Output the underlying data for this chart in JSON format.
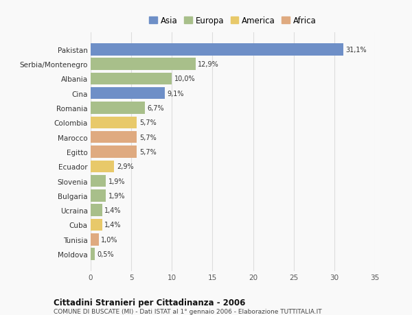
{
  "categories": [
    "Pakistan",
    "Serbia/Montenegro",
    "Albania",
    "Cina",
    "Romania",
    "Colombia",
    "Marocco",
    "Egitto",
    "Ecuador",
    "Slovenia",
    "Bulgaria",
    "Ucraina",
    "Cuba",
    "Tunisia",
    "Moldova"
  ],
  "values": [
    31.1,
    12.9,
    10.0,
    9.1,
    6.7,
    5.7,
    5.7,
    5.7,
    2.9,
    1.9,
    1.9,
    1.4,
    1.4,
    1.0,
    0.5
  ],
  "labels": [
    "31,1%",
    "12,9%",
    "10,0%",
    "9,1%",
    "6,7%",
    "5,7%",
    "5,7%",
    "5,7%",
    "2,9%",
    "1,9%",
    "1,9%",
    "1,4%",
    "1,4%",
    "1,0%",
    "0,5%"
  ],
  "continents": [
    "Asia",
    "Europa",
    "Europa",
    "Asia",
    "Europa",
    "America",
    "Africa",
    "Africa",
    "America",
    "Europa",
    "Europa",
    "Europa",
    "America",
    "Africa",
    "Europa"
  ],
  "colors": {
    "Asia": "#6e8fc7",
    "Europa": "#a8bf8a",
    "America": "#e8c96a",
    "Africa": "#dfaa80"
  },
  "legend_order": [
    "Asia",
    "Europa",
    "America",
    "Africa"
  ],
  "title": "Cittadini Stranieri per Cittadinanza - 2006",
  "subtitle": "COMUNE DI BUSCATE (MI) - Dati ISTAT al 1° gennaio 2006 - Elaborazione TUTTITALIA.IT",
  "xlim": [
    0,
    35
  ],
  "xticks": [
    0,
    5,
    10,
    15,
    20,
    25,
    30,
    35
  ],
  "background_color": "#f9f9f9",
  "grid_color": "#dddddd",
  "bar_height": 0.82
}
